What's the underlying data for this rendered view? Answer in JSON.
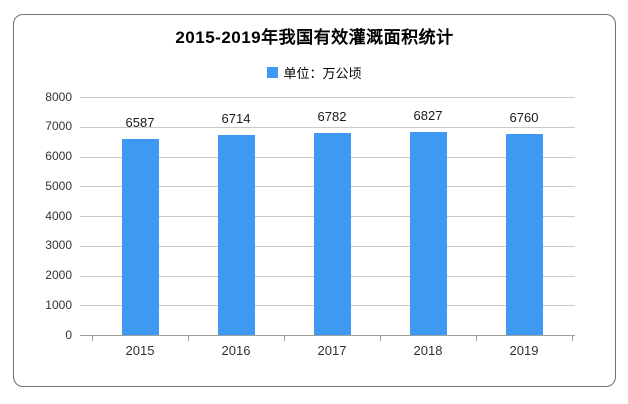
{
  "chart_data": {
    "type": "bar",
    "title": "2015-2019年我国有效灌溉面积统计",
    "legend": "单位：万公顷",
    "legend_position": "top-center",
    "categories": [
      "2015",
      "2016",
      "2017",
      "2018",
      "2019"
    ],
    "values": [
      6587,
      6714,
      6782,
      6827,
      6760
    ],
    "ylim": [
      0,
      8000
    ],
    "ytick_step": 1000,
    "ytick_labels": [
      "0",
      "1000",
      "2000",
      "3000",
      "4000",
      "5000",
      "6000",
      "7000",
      "8000"
    ],
    "grid": true,
    "colors": {
      "bar": "#3E99F2",
      "grid": "#c9c9c9",
      "axis": "#9e9e9e",
      "frame_border": "#707070",
      "title_text": "#000000",
      "value_label_text": "#1a1a1a",
      "tick_label_text": "#333333",
      "background": "#ffffff"
    }
  }
}
